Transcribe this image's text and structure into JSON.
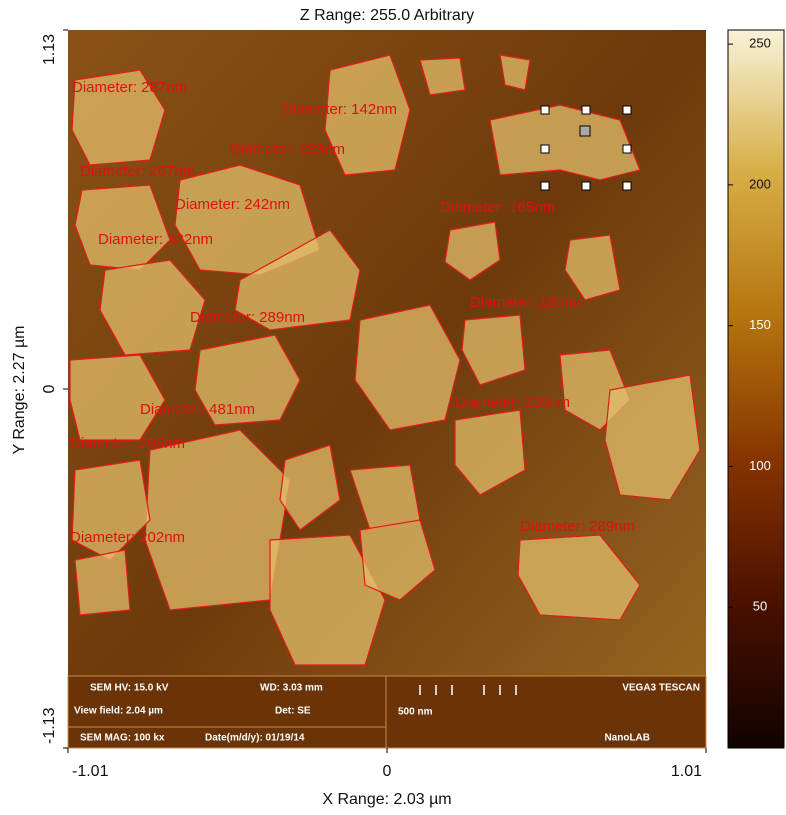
{
  "chart_data": {
    "type": "image",
    "title": "Z Range: 255.0 Arbitrary",
    "x_label": "X Range: 2.03 µm",
    "y_label": "Y Range: 2.27 µm",
    "xlim": [
      -1.01,
      1.01
    ],
    "xticks": [
      -1.01,
      0,
      1.01
    ],
    "ylim": [
      -1.13,
      1.13
    ],
    "yticks": [
      -1.13,
      0,
      1.13
    ],
    "colorbar": {
      "lim": [
        0,
        255
      ],
      "ticks": [
        50,
        100,
        150,
        200,
        250
      ]
    },
    "annotations": [
      "Diameter: 287nm",
      "Diameter: 142nm",
      "Diameter: 333nm",
      "Diameter: 267nm",
      "Diameter: 242nm",
      "Diameter: 322nm",
      "Diameter: 165nm",
      "Diameter: 289nm",
      "Diameter: 165nm",
      "Diameter: 239nm",
      "Diameter: 296nm",
      "Diameter: 202nm",
      "Diameter: 289nm",
      "Diameter: 481nm"
    ],
    "info_panel": {
      "hv": "SEM HV: 15.0 kV",
      "wd": "WD: 3.03 mm",
      "brand": "VEGA3 TESCAN",
      "view_field": "View field: 2.04 µm",
      "det": "Det: SE",
      "scale": "500 nm",
      "mag": "SEM MAG: 100 kx",
      "date": "Date(m/d/y): 01/19/14",
      "lab": "NanoLAB"
    }
  }
}
